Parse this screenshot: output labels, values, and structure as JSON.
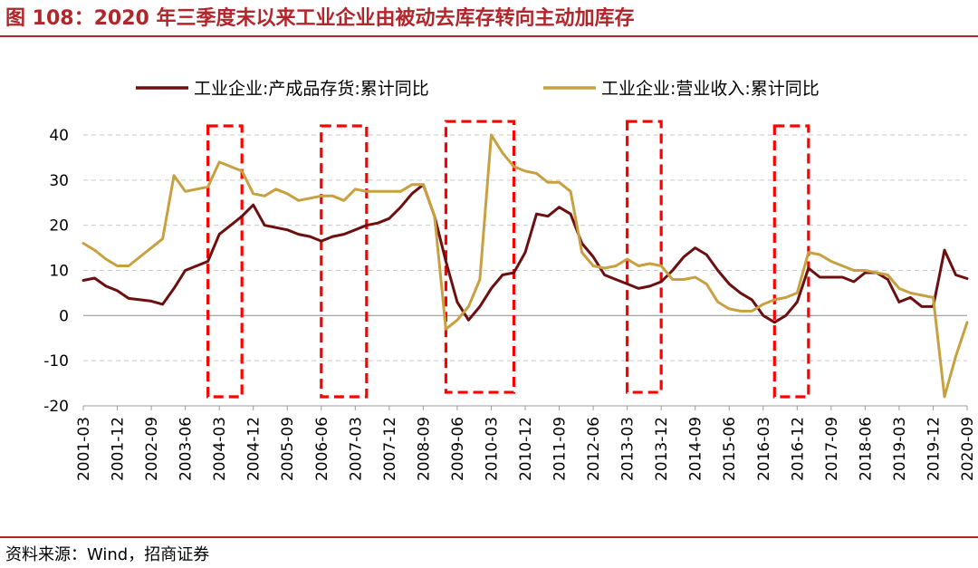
{
  "title": "图 108：2020 年三季度末以来工业企业由被动去库存转向主动加库存",
  "source": "资料来源：Wind，招商证券",
  "chart_data": {
    "type": "line",
    "title": "图 108：2020 年三季度末以来工业企业由被动去库存转向主动加库存",
    "xlabel": "",
    "ylabel": "",
    "ylim": [
      -20,
      40
    ],
    "yticks": [
      -20,
      -10,
      0,
      10,
      20,
      30,
      40
    ],
    "grid": "horizontal dashed",
    "legend_position": "top",
    "x_tick_labels": [
      "2001-03",
      "2001-12",
      "2002-09",
      "2003-06",
      "2004-03",
      "2004-12",
      "2005-09",
      "2006-06",
      "2007-03",
      "2007-12",
      "2008-09",
      "2009-06",
      "2010-03",
      "2010-12",
      "2011-09",
      "2012-06",
      "2013-03",
      "2013-12",
      "2014-09",
      "2015-06",
      "2016-03",
      "2016-12",
      "2017-09",
      "2018-06",
      "2019-03",
      "2019-12",
      "2020-09"
    ],
    "series": [
      {
        "name": "工业企业:产成品存货:累计同比",
        "color": "#6b0f0f",
        "points": [
          [
            "2001-03",
            7.8
          ],
          [
            "2001-06",
            8.3
          ],
          [
            "2001-09",
            6.5
          ],
          [
            "2001-12",
            5.5
          ],
          [
            "2002-03",
            3.8
          ],
          [
            "2002-06",
            3.5
          ],
          [
            "2002-09",
            3.2
          ],
          [
            "2002-12",
            2.5
          ],
          [
            "2003-03",
            6
          ],
          [
            "2003-06",
            10
          ],
          [
            "2003-09",
            11
          ],
          [
            "2003-12",
            12
          ],
          [
            "2004-03",
            18
          ],
          [
            "2004-06",
            20
          ],
          [
            "2004-09",
            22
          ],
          [
            "2004-12",
            24.5
          ],
          [
            "2005-03",
            20
          ],
          [
            "2005-06",
            19.5
          ],
          [
            "2005-09",
            19
          ],
          [
            "2005-12",
            18
          ],
          [
            "2006-03",
            17.5
          ],
          [
            "2006-06",
            16.5
          ],
          [
            "2006-09",
            17.5
          ],
          [
            "2006-12",
            18
          ],
          [
            "2007-03",
            19
          ],
          [
            "2007-06",
            20
          ],
          [
            "2007-09",
            20.5
          ],
          [
            "2007-12",
            21.5
          ],
          [
            "2008-03",
            24
          ],
          [
            "2008-06",
            27
          ],
          [
            "2008-09",
            29
          ],
          [
            "2008-12",
            22
          ],
          [
            "2009-03",
            12
          ],
          [
            "2009-06",
            3
          ],
          [
            "2009-09",
            -1
          ],
          [
            "2009-12",
            2
          ],
          [
            "2010-03",
            6
          ],
          [
            "2010-06",
            9
          ],
          [
            "2010-09",
            9.5
          ],
          [
            "2010-12",
            14
          ],
          [
            "2011-03",
            22.5
          ],
          [
            "2011-06",
            22
          ],
          [
            "2011-09",
            24
          ],
          [
            "2011-12",
            22.5
          ],
          [
            "2012-03",
            16
          ],
          [
            "2012-06",
            13
          ],
          [
            "2012-09",
            9
          ],
          [
            "2012-12",
            8
          ],
          [
            "2013-03",
            7
          ],
          [
            "2013-06",
            6
          ],
          [
            "2013-09",
            6.5
          ],
          [
            "2013-12",
            7.5
          ],
          [
            "2014-03",
            10
          ],
          [
            "2014-06",
            13
          ],
          [
            "2014-09",
            15
          ],
          [
            "2014-12",
            13.5
          ],
          [
            "2015-03",
            10
          ],
          [
            "2015-06",
            7
          ],
          [
            "2015-09",
            5
          ],
          [
            "2015-12",
            3.5
          ],
          [
            "2016-03",
            0
          ],
          [
            "2016-06",
            -1.5
          ],
          [
            "2016-09",
            0
          ],
          [
            "2016-12",
            3
          ],
          [
            "2017-03",
            10.5
          ],
          [
            "2017-06",
            8.5
          ],
          [
            "2017-09",
            8.5
          ],
          [
            "2017-12",
            8.5
          ],
          [
            "2018-03",
            7.5
          ],
          [
            "2018-06",
            9.5
          ],
          [
            "2018-09",
            9.5
          ],
          [
            "2018-12",
            8
          ],
          [
            "2019-03",
            3
          ],
          [
            "2019-06",
            4
          ],
          [
            "2019-09",
            2
          ],
          [
            "2019-12",
            2
          ],
          [
            "2020-03",
            14.5
          ],
          [
            "2020-06",
            9
          ],
          [
            "2020-09",
            8.2
          ]
        ]
      },
      {
        "name": "工业企业:营业收入:累计同比",
        "color": "#c8a040",
        "points": [
          [
            "2001-03",
            16
          ],
          [
            "2001-06",
            14.5
          ],
          [
            "2001-09",
            12.5
          ],
          [
            "2001-12",
            11
          ],
          [
            "2002-03",
            11
          ],
          [
            "2002-06",
            13
          ],
          [
            "2002-09",
            15
          ],
          [
            "2002-12",
            17
          ],
          [
            "2003-03",
            31
          ],
          [
            "2003-06",
            27.5
          ],
          [
            "2003-09",
            28
          ],
          [
            "2003-12",
            28.5
          ],
          [
            "2004-03",
            34
          ],
          [
            "2004-06",
            33
          ],
          [
            "2004-09",
            32
          ],
          [
            "2004-12",
            27
          ],
          [
            "2005-03",
            26.5
          ],
          [
            "2005-06",
            28
          ],
          [
            "2005-09",
            27
          ],
          [
            "2005-12",
            25.5
          ],
          [
            "2006-03",
            26
          ],
          [
            "2006-06",
            26.5
          ],
          [
            "2006-09",
            26.5
          ],
          [
            "2006-12",
            25.5
          ],
          [
            "2007-03",
            28
          ],
          [
            "2007-06",
            27.5
          ],
          [
            "2007-09",
            27.5
          ],
          [
            "2007-12",
            27.5
          ],
          [
            "2008-03",
            27.5
          ],
          [
            "2008-06",
            29
          ],
          [
            "2008-09",
            29
          ],
          [
            "2008-12",
            22
          ],
          [
            "2009-03",
            -3
          ],
          [
            "2009-06",
            -1
          ],
          [
            "2009-09",
            2
          ],
          [
            "2009-12",
            8
          ],
          [
            "2010-03",
            40
          ],
          [
            "2010-06",
            36
          ],
          [
            "2010-09",
            33
          ],
          [
            "2010-12",
            32
          ],
          [
            "2011-03",
            31.5
          ],
          [
            "2011-06",
            29.5
          ],
          [
            "2011-09",
            29.5
          ],
          [
            "2011-12",
            27.5
          ],
          [
            "2012-03",
            14
          ],
          [
            "2012-06",
            11
          ],
          [
            "2012-09",
            10.5
          ],
          [
            "2012-12",
            11
          ],
          [
            "2013-03",
            12.5
          ],
          [
            "2013-06",
            11
          ],
          [
            "2013-09",
            11.5
          ],
          [
            "2013-12",
            11
          ],
          [
            "2014-03",
            8
          ],
          [
            "2014-06",
            8
          ],
          [
            "2014-09",
            8.5
          ],
          [
            "2014-12",
            7
          ],
          [
            "2015-03",
            3
          ],
          [
            "2015-06",
            1.5
          ],
          [
            "2015-09",
            1
          ],
          [
            "2015-12",
            1
          ],
          [
            "2016-03",
            2.5
          ],
          [
            "2016-06",
            3.5
          ],
          [
            "2016-09",
            4
          ],
          [
            "2016-12",
            5
          ],
          [
            "2017-03",
            14
          ],
          [
            "2017-06",
            13.5
          ],
          [
            "2017-09",
            12
          ],
          [
            "2017-12",
            11
          ],
          [
            "2018-03",
            10
          ],
          [
            "2018-06",
            10
          ],
          [
            "2018-09",
            9.5
          ],
          [
            "2018-12",
            9
          ],
          [
            "2019-03",
            6
          ],
          [
            "2019-06",
            5
          ],
          [
            "2019-09",
            4.5
          ],
          [
            "2019-12",
            4
          ],
          [
            "2020-03",
            -18
          ],
          [
            "2020-06",
            -9
          ],
          [
            "2020-09",
            -1.5
          ]
        ]
      }
    ],
    "highlight_boxes": [
      {
        "from": "2003-12",
        "to": "2004-09",
        "ymin": -18,
        "ymax": 42
      },
      {
        "from": "2006-06",
        "to": "2007-06",
        "ymin": -18,
        "ymax": 42
      },
      {
        "from": "2009-03",
        "to": "2010-09",
        "ymin": -17,
        "ymax": 43
      },
      {
        "from": "2013-03",
        "to": "2013-12",
        "ymin": -17,
        "ymax": 43
      },
      {
        "from": "2016-06",
        "to": "2017-03",
        "ymin": -18,
        "ymax": 42
      }
    ]
  }
}
